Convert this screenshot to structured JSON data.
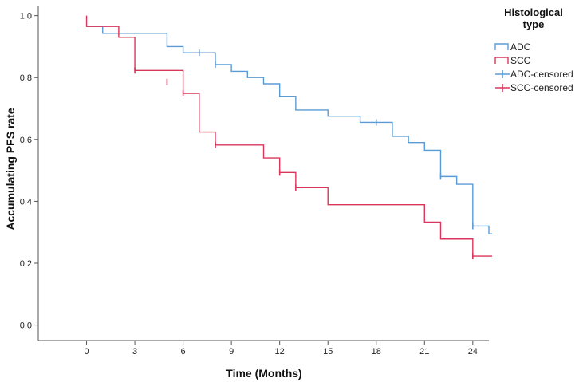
{
  "chart_data": {
    "type": "line",
    "subtype": "kaplan-meier step",
    "xlabel": "Time (Months)",
    "ylabel": "Accumulating PFS rate",
    "xlim": [
      -3,
      25
    ],
    "ylim": [
      -0.05,
      1.03
    ],
    "x_ticks": [
      0,
      3,
      6,
      9,
      12,
      15,
      18,
      21,
      24
    ],
    "y_ticks": [
      0.0,
      0.2,
      0.4,
      0.6,
      0.8,
      1.0
    ],
    "y_tick_labels": [
      "0,0",
      "0,2",
      "0,4",
      "0,6",
      "0,8",
      "1,0"
    ],
    "grid": false,
    "legend": {
      "title_lines": [
        "Histological",
        "type"
      ],
      "position": "top-right",
      "entries": [
        "ADC",
        "SCC",
        "ADC-censored",
        "SCC-censored"
      ]
    },
    "series": [
      {
        "name": "ADC",
        "color": "#5b9bd5",
        "steps": [
          [
            0,
            0.965
          ],
          [
            1,
            0.943
          ],
          [
            5,
            0.9
          ],
          [
            6,
            0.88
          ],
          [
            8,
            0.842
          ],
          [
            9,
            0.82
          ],
          [
            10,
            0.8
          ],
          [
            11,
            0.78
          ],
          [
            12,
            0.738
          ],
          [
            13,
            0.695
          ],
          [
            15,
            0.675
          ],
          [
            17,
            0.655
          ],
          [
            19,
            0.61
          ],
          [
            20,
            0.59
          ],
          [
            21,
            0.565
          ],
          [
            22,
            0.48
          ],
          [
            23,
            0.455
          ],
          [
            24,
            0.32
          ],
          [
            25,
            0.295
          ]
        ],
        "end_x": 25.2,
        "censored": [
          [
            7,
            0.88
          ],
          [
            8,
            0.842
          ],
          [
            18,
            0.655
          ],
          [
            22,
            0.48
          ],
          [
            24,
            0.32
          ]
        ]
      },
      {
        "name": "SCC",
        "color": "#d9365a",
        "steps": [
          [
            0,
            1.0
          ],
          [
            0,
            0.965
          ],
          [
            2,
            0.93
          ],
          [
            3,
            0.823
          ],
          [
            6,
            0.749
          ],
          [
            7,
            0.624
          ],
          [
            8,
            0.582
          ],
          [
            11,
            0.54
          ],
          [
            12,
            0.493
          ],
          [
            13,
            0.444
          ],
          [
            15,
            0.389
          ],
          [
            21,
            0.333
          ],
          [
            22,
            0.278
          ],
          [
            24,
            0.223
          ]
        ],
        "end_x": 25.2,
        "censored": [
          [
            3,
            0.823
          ],
          [
            5,
            0.786
          ],
          [
            6,
            0.749
          ],
          [
            8,
            0.582
          ],
          [
            12,
            0.493
          ],
          [
            13,
            0.444
          ],
          [
            24,
            0.223
          ]
        ]
      }
    ]
  }
}
